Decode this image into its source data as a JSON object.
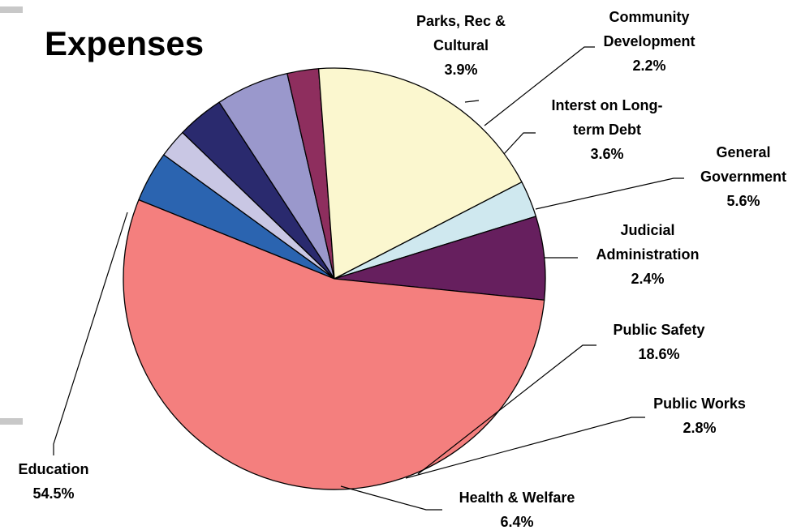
{
  "chart_data": {
    "type": "pie",
    "title": "Expenses",
    "slices": [
      {
        "label": "Parks, Rec & Cultural",
        "lines": [
          "Parks, Rec &",
          "Cultural"
        ],
        "pct_label": "3.9%",
        "value": 3.9,
        "color": "#2B64B0"
      },
      {
        "label": "Community Development",
        "lines": [
          "Community",
          "Development"
        ],
        "pct_label": "2.2%",
        "value": 2.2,
        "color": "#C9C7E4"
      },
      {
        "label": "Interst on Long-term Debt",
        "lines": [
          "Interst on Long-",
          "term Debt"
        ],
        "pct_label": "3.6%",
        "value": 3.6,
        "color": "#2A2A6E"
      },
      {
        "label": "General Government",
        "lines": [
          "General",
          "Government"
        ],
        "pct_label": "5.6%",
        "value": 5.6,
        "color": "#9A98CC"
      },
      {
        "label": "Judicial Administration",
        "lines": [
          "Judicial",
          "Administration"
        ],
        "pct_label": "2.4%",
        "value": 2.4,
        "color": "#8E2E5E"
      },
      {
        "label": "Public Safety",
        "lines": [
          "Public Safety"
        ],
        "pct_label": "18.6%",
        "value": 18.6,
        "color": "#FBF7CF"
      },
      {
        "label": "Public Works",
        "lines": [
          "Public Works"
        ],
        "pct_label": "2.8%",
        "value": 2.8,
        "color": "#CFE8EF"
      },
      {
        "label": "Health & Welfare",
        "lines": [
          "Health & Welfare"
        ],
        "pct_label": "6.4%",
        "value": 6.4,
        "color": "#661F5E"
      },
      {
        "label": "Education",
        "lines": [
          "Education"
        ],
        "pct_label": "54.5%",
        "value": 54.5,
        "color": "#F47F7E"
      }
    ]
  }
}
